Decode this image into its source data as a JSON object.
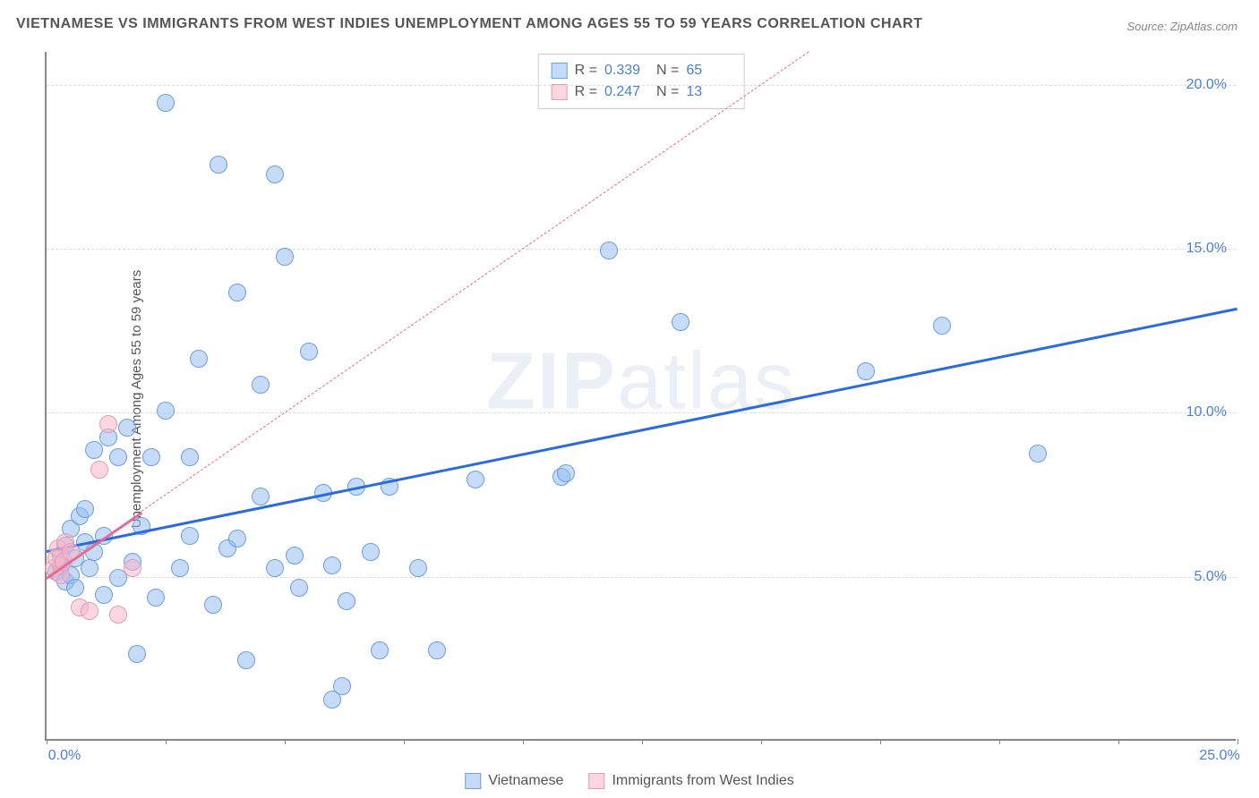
{
  "title": "VIETNAMESE VS IMMIGRANTS FROM WEST INDIES UNEMPLOYMENT AMONG AGES 55 TO 59 YEARS CORRELATION CHART",
  "source": "Source: ZipAtlas.com",
  "ylabel": "Unemployment Among Ages 55 to 59 years",
  "watermark_a": "ZIP",
  "watermark_b": "atlas",
  "chart": {
    "type": "scatter",
    "background": "#ffffff",
    "grid_color": "#dddddd",
    "axis_color": "#888888",
    "xlim": [
      0,
      25
    ],
    "ylim": [
      0,
      21
    ],
    "xticks": [
      {
        "v": 0,
        "label": "0.0%"
      },
      {
        "v": 25,
        "label": "25.0%"
      }
    ],
    "yticks": [
      {
        "v": 5,
        "label": "5.0%"
      },
      {
        "v": 10,
        "label": "10.0%"
      },
      {
        "v": 15,
        "label": "15.0%"
      },
      {
        "v": 20,
        "label": "20.0%"
      }
    ],
    "xtick_marks": [
      0,
      2.5,
      5,
      7.5,
      10,
      12.5,
      15,
      17.5,
      20,
      22.5,
      25
    ],
    "series": [
      {
        "name": "Vietnamese",
        "marker_fill": "rgba(150,190,240,0.55)",
        "marker_stroke": "#6b9fe0",
        "marker_radius": 10,
        "trend_color": "#2a6be0",
        "trend_solid_end": 25,
        "trend": {
          "x1": 0,
          "y1": 5.8,
          "x2": 25,
          "y2": 13.2
        },
        "R": "0.339",
        "N": "65",
        "points": [
          [
            0.2,
            5.1
          ],
          [
            0.3,
            5.3
          ],
          [
            0.3,
            5.6
          ],
          [
            0.4,
            4.8
          ],
          [
            0.4,
            5.9
          ],
          [
            0.5,
            6.4
          ],
          [
            0.5,
            5.0
          ],
          [
            0.6,
            5.5
          ],
          [
            0.6,
            4.6
          ],
          [
            0.7,
            6.8
          ],
          [
            0.8,
            6.0
          ],
          [
            0.8,
            7.0
          ],
          [
            0.9,
            5.2
          ],
          [
            1.0,
            8.8
          ],
          [
            1.0,
            5.7
          ],
          [
            1.2,
            6.2
          ],
          [
            1.2,
            4.4
          ],
          [
            1.3,
            9.2
          ],
          [
            1.5,
            8.6
          ],
          [
            1.5,
            4.9
          ],
          [
            1.7,
            9.5
          ],
          [
            1.8,
            5.4
          ],
          [
            1.9,
            2.6
          ],
          [
            2.0,
            6.5
          ],
          [
            2.2,
            8.6
          ],
          [
            2.3,
            4.3
          ],
          [
            2.5,
            10.0
          ],
          [
            2.5,
            19.4
          ],
          [
            2.8,
            5.2
          ],
          [
            3.0,
            6.2
          ],
          [
            3.0,
            8.6
          ],
          [
            3.2,
            11.6
          ],
          [
            3.5,
            4.1
          ],
          [
            3.6,
            17.5
          ],
          [
            3.8,
            5.8
          ],
          [
            4.0,
            6.1
          ],
          [
            4.0,
            13.6
          ],
          [
            4.2,
            2.4
          ],
          [
            4.5,
            10.8
          ],
          [
            4.5,
            7.4
          ],
          [
            4.8,
            5.2
          ],
          [
            5.0,
            14.7
          ],
          [
            5.2,
            5.6
          ],
          [
            5.3,
            4.6
          ],
          [
            5.5,
            11.8
          ],
          [
            5.8,
            7.5
          ],
          [
            6.0,
            5.3
          ],
          [
            6.2,
            1.6
          ],
          [
            6.3,
            4.2
          ],
          [
            6.5,
            7.7
          ],
          [
            6.8,
            5.7
          ],
          [
            7.0,
            2.7
          ],
          [
            7.2,
            7.7
          ],
          [
            7.8,
            5.2
          ],
          [
            8.2,
            2.7
          ],
          [
            9.0,
            7.9
          ],
          [
            10.8,
            8.0
          ],
          [
            10.9,
            8.1
          ],
          [
            11.8,
            14.9
          ],
          [
            13.3,
            12.7
          ],
          [
            17.2,
            11.2
          ],
          [
            18.8,
            12.6
          ],
          [
            20.8,
            8.7
          ],
          [
            6.0,
            1.2
          ],
          [
            4.8,
            17.2
          ]
        ]
      },
      {
        "name": "Immigrants from West Indies",
        "marker_fill": "rgba(250,180,200,0.55)",
        "marker_stroke": "#e89ab0",
        "marker_radius": 10,
        "trend_color": "#e86a90",
        "trend_solid_end": 2.0,
        "trend": {
          "x1": 0,
          "y1": 5.0,
          "x2": 16,
          "y2": 21
        },
        "R": "0.247",
        "N": "13",
        "points": [
          [
            0.15,
            5.2
          ],
          [
            0.2,
            5.5
          ],
          [
            0.25,
            5.8
          ],
          [
            0.3,
            5.0
          ],
          [
            0.35,
            5.4
          ],
          [
            0.4,
            6.0
          ],
          [
            0.5,
            5.7
          ],
          [
            0.7,
            4.0
          ],
          [
            0.9,
            3.9
          ],
          [
            1.1,
            8.2
          ],
          [
            1.3,
            9.6
          ],
          [
            1.5,
            3.8
          ],
          [
            1.8,
            5.2
          ]
        ]
      }
    ]
  },
  "stats_legend_title_R": "R =",
  "stats_legend_title_N": "N =",
  "bottom_legend": {
    "items": [
      "Vietnamese",
      "Immigrants from West Indies"
    ]
  }
}
